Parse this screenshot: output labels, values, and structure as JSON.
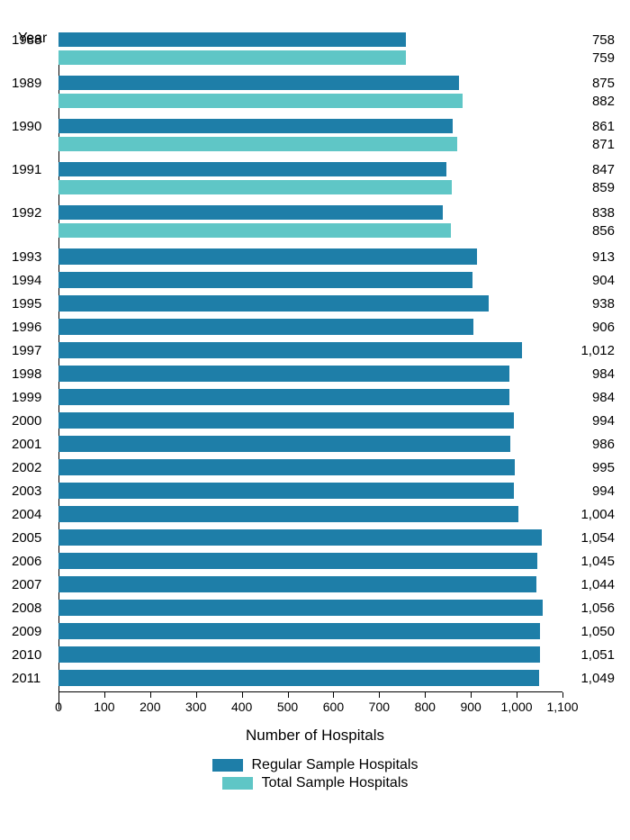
{
  "chart": {
    "type": "bar",
    "orientation": "horizontal",
    "y_axis_title": "Year",
    "x_axis_title": "Number of Hospitals",
    "xlim": [
      0,
      1100
    ],
    "xtick_step": 100,
    "xticks": [
      "0",
      "100",
      "200",
      "300",
      "400",
      "500",
      "600",
      "700",
      "800",
      "900",
      "1,000",
      "1,100"
    ],
    "background_color": "#ffffff",
    "text_color": "#000000",
    "colors": {
      "regular": "#1e7ea8",
      "total": "#5fc6c6"
    },
    "bar_height_paired": 16,
    "bar_height_single": 18,
    "axis_fontsize": 14,
    "label_fontsize": 15,
    "title_fontsize": 17,
    "legend_fontsize": 16,
    "paired_years": [
      {
        "year": "1988",
        "regular": 758,
        "total": 759,
        "regular_label": "758",
        "total_label": "759"
      },
      {
        "year": "1989",
        "regular": 875,
        "total": 882,
        "regular_label": "875",
        "total_label": "882"
      },
      {
        "year": "1990",
        "regular": 861,
        "total": 871,
        "regular_label": "861",
        "total_label": "871"
      },
      {
        "year": "1991",
        "regular": 847,
        "total": 859,
        "regular_label": "847",
        "total_label": "859"
      },
      {
        "year": "1992",
        "regular": 838,
        "total": 856,
        "regular_label": "838",
        "total_label": "856"
      }
    ],
    "single_years": [
      {
        "year": "1993",
        "value": 913,
        "label": "913"
      },
      {
        "year": "1994",
        "value": 904,
        "label": "904"
      },
      {
        "year": "1995",
        "value": 938,
        "label": "938"
      },
      {
        "year": "1996",
        "value": 906,
        "label": "906"
      },
      {
        "year": "1997",
        "value": 1012,
        "label": "1,012"
      },
      {
        "year": "1998",
        "value": 984,
        "label": "984"
      },
      {
        "year": "1999",
        "value": 984,
        "label": "984"
      },
      {
        "year": "2000",
        "value": 994,
        "label": "994"
      },
      {
        "year": "2001",
        "value": 986,
        "label": "986"
      },
      {
        "year": "2002",
        "value": 995,
        "label": "995"
      },
      {
        "year": "2003",
        "value": 994,
        "label": "994"
      },
      {
        "year": "2004",
        "value": 1004,
        "label": "1,004"
      },
      {
        "year": "2005",
        "value": 1054,
        "label": "1,054"
      },
      {
        "year": "2006",
        "value": 1045,
        "label": "1,045"
      },
      {
        "year": "2007",
        "value": 1044,
        "label": "1,044"
      },
      {
        "year": "2008",
        "value": 1056,
        "label": "1,056"
      },
      {
        "year": "2009",
        "value": 1050,
        "label": "1,050"
      },
      {
        "year": "2010",
        "value": 1051,
        "label": "1,051"
      },
      {
        "year": "2011",
        "value": 1049,
        "label": "1,049"
      }
    ],
    "legend": {
      "regular_label": "Regular Sample Hospitals",
      "total_label": "Total Sample Hospitals"
    }
  }
}
